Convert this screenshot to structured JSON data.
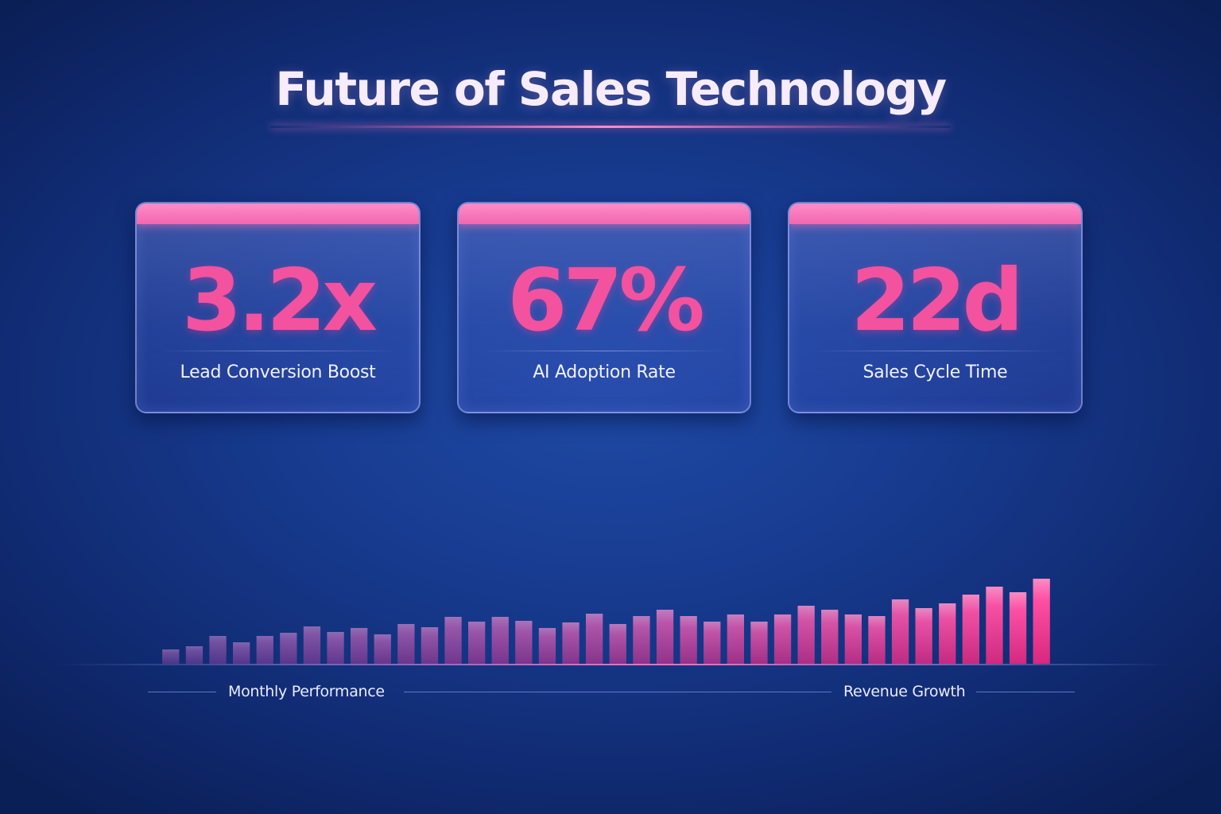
{
  "title": "Future of Sales Technology",
  "colors": {
    "accent_pink": "#f3529f",
    "card_bar_pink": "#ff8cc7",
    "background_blue": "#173a8e",
    "bar_start_purple": "#8e4fa6"
  },
  "metrics": [
    {
      "value": "3.2x",
      "label": "Lead Conversion Boost"
    },
    {
      "value": "67%",
      "label": "AI Adoption Rate"
    },
    {
      "value": "22d",
      "label": "Sales Cycle Time"
    }
  ],
  "footer": {
    "left_label": "Monthly Performance",
    "right_label": "Revenue Growth"
  },
  "chart_data": {
    "type": "bar",
    "title": "",
    "xlabel": "",
    "ylabel": "",
    "axes_visible": false,
    "ylim": [
      0,
      110
    ],
    "values": [
      18,
      22,
      35,
      27,
      35,
      39,
      47,
      40,
      45,
      37,
      50,
      46,
      59,
      53,
      59,
      54,
      45,
      52,
      63,
      50,
      60,
      68,
      60,
      53,
      62,
      53,
      62,
      73,
      68,
      62,
      60,
      81,
      70,
      76,
      87,
      97,
      90,
      107
    ]
  }
}
